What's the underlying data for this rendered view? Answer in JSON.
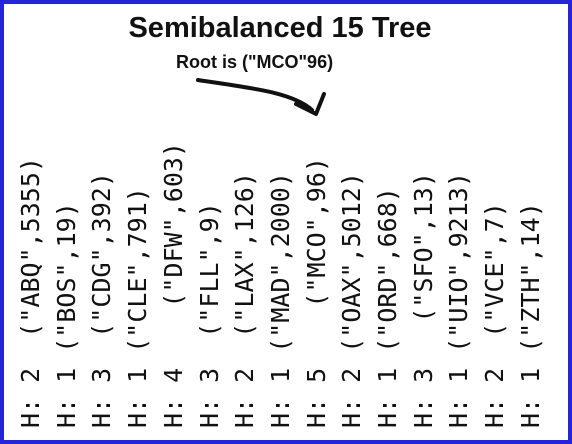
{
  "title": "Semibalanced 15 Tree",
  "subtitle": "Root is (\"MCO\"96)",
  "arrow_color": "#111111",
  "frame_color": "#2424d8",
  "nodes": [
    {
      "label": "H: 2  (\"ABQ\",5355)"
    },
    {
      "label": "H: 1 (\"BOS\",19)"
    },
    {
      "label": "H: 3  (\"CDG\",392)"
    },
    {
      "label": "H: 1 (\"CLE\",791)"
    },
    {
      "label": "H: 4    (\"DFW\",603)"
    },
    {
      "label": "H: 3  (\"FLL\",9)"
    },
    {
      "label": "H: 2  (\"LAX\",126)"
    },
    {
      "label": "H: 1 (\"MAD\",2000)"
    },
    {
      "label": "H: 5    (\"MCO\",96)"
    },
    {
      "label": "H: 2 (\"OAX\",5012)"
    },
    {
      "label": "H: 1 (\"ORD\",668)"
    },
    {
      "label": "H: 3   (\"SFO\",13)"
    },
    {
      "label": "H: 1 (\"UIO\",9213)"
    },
    {
      "label": "H: 2  (\"VCE\",7)"
    },
    {
      "label": "H: 1 (\"ZTH\",14)"
    }
  ]
}
